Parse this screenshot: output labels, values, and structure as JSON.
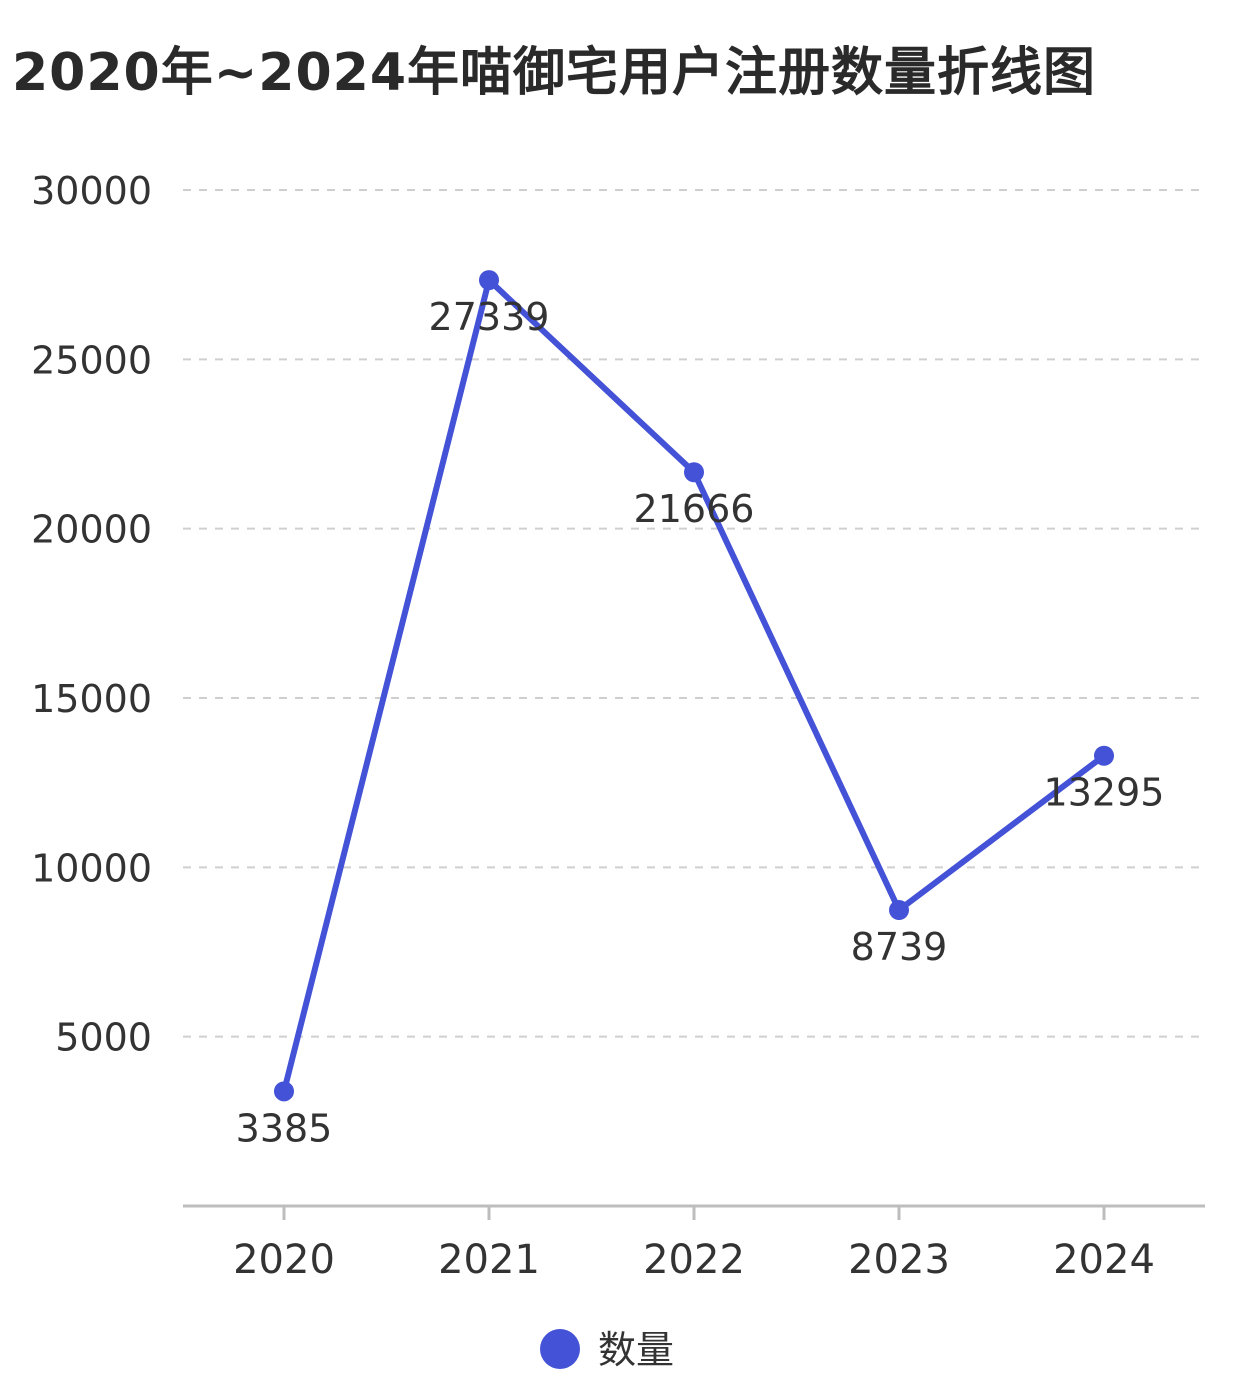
{
  "title": "2020年~2024年喵御宅用户注册数量折线图",
  "chart_data": {
    "type": "line",
    "title": "2020年~2024年喵御宅用户注册数量折线图",
    "categories": [
      "2020",
      "2021",
      "2022",
      "2023",
      "2024"
    ],
    "series": [
      {
        "name": "数量",
        "values": [
          3385,
          27339,
          21666,
          8739,
          13295
        ],
        "color": "#4352d6"
      }
    ],
    "ylim": [
      0,
      30000
    ],
    "yticks": [
      5000,
      10000,
      15000,
      20000,
      25000,
      30000
    ],
    "ytick_labels": [
      "5000",
      "10000",
      "15000",
      "20000",
      "25000",
      "30000"
    ],
    "data_labels": [
      "3385",
      "27339",
      "21666",
      "8739",
      "13295"
    ],
    "grid": "horizontal dashed",
    "legend": "bottom-center",
    "xlabel": "",
    "ylabel": ""
  }
}
